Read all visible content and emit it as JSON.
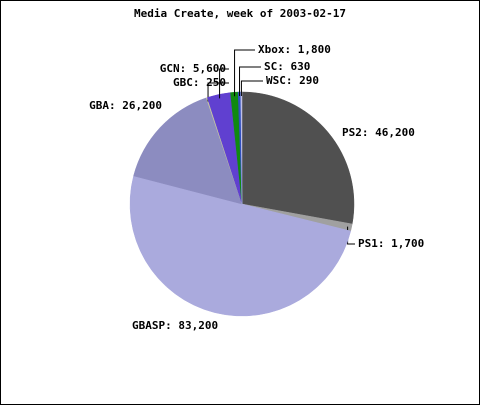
{
  "chart_data": {
    "type": "pie",
    "title": "Media Create, week of 2003-02-17",
    "categories": [
      "PS2",
      "PS1",
      "GBASP",
      "GBA",
      "GBC",
      "GCN",
      "Xbox",
      "SC",
      "WSC"
    ],
    "values": [
      46200,
      1700,
      83200,
      26200,
      250,
      5600,
      1800,
      630,
      290
    ],
    "value_labels": [
      "PS2: 46,200",
      "PS1: 1,700",
      "GBASP: 83,200",
      "GBA: 26,200",
      "GBC: 250",
      "GCN: 5,600",
      "Xbox: 1,800",
      "SC: 630",
      "WSC: 290"
    ],
    "colors": [
      "#505050",
      "#a0a0a0",
      "#aaaadd",
      "#8c8cc0",
      "#c8c8a0",
      "#6040d0",
      "#108a10",
      "#3050c0",
      "#c0c0e8"
    ]
  }
}
